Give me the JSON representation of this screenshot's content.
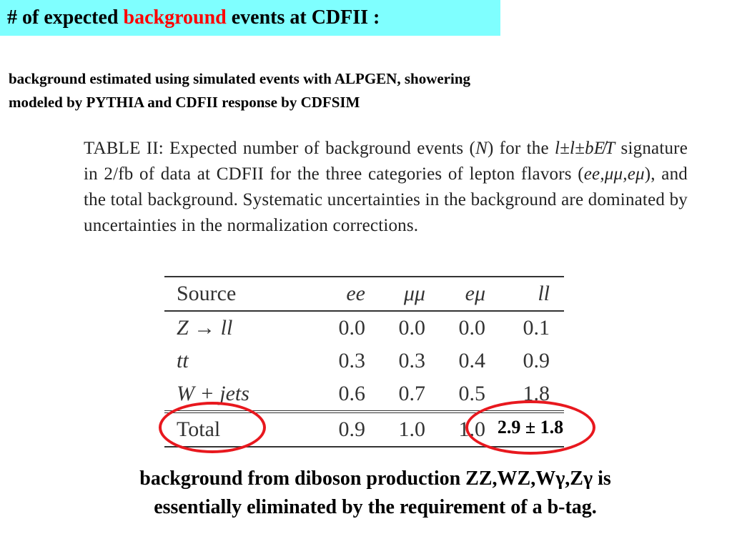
{
  "title": {
    "prefix": "# of expected ",
    "highlight": "background",
    "suffix": " events at CDFII :"
  },
  "intro": {
    "line1": "background estimated using simulated events with ALPGEN, showering",
    "line2": "modeled by PYTHIA and CDFII response by CDFSIM"
  },
  "caption": {
    "part1": "TABLE II: Expected number of background events (",
    "n_symbol": "N",
    "part2": ") for the ",
    "signature": "l±l±bE̸T",
    "part3": " signature in 2/fb of data at CDFII for the three categories of lepton flavors (",
    "flavors": "ee,μμ,eμ",
    "part4": "), and the total background. Systematic uncertainties in the background are dominated by uncertainties in the normalization corrections."
  },
  "table": {
    "headers": [
      "Source",
      "ee",
      "μμ",
      "eμ",
      "ll"
    ],
    "rows": [
      {
        "source": "Z → ll",
        "ee": "0.0",
        "mumu": "0.0",
        "emu": "0.0",
        "ll": "0.1"
      },
      {
        "source": "tt",
        "ee": "0.3",
        "mumu": "0.3",
        "emu": "0.4",
        "ll": "0.9"
      },
      {
        "source": "W + jets",
        "ee": "0.6",
        "mumu": "0.7",
        "emu": "0.5",
        "ll": "1.8"
      }
    ],
    "total": {
      "source": "Total",
      "ee": "0.9",
      "mumu": "1.0",
      "emu": "1.0",
      "ll": "2.9 ± 1.8"
    }
  },
  "footer": {
    "line1": "background from diboson production ZZ,WZ,Wγ,Zγ  is",
    "line2": "essentially eliminated by the requirement of a b-tag."
  },
  "colors": {
    "title_bg": "#7fffff",
    "highlight": "#ff0000",
    "circle": "#e8181e"
  }
}
